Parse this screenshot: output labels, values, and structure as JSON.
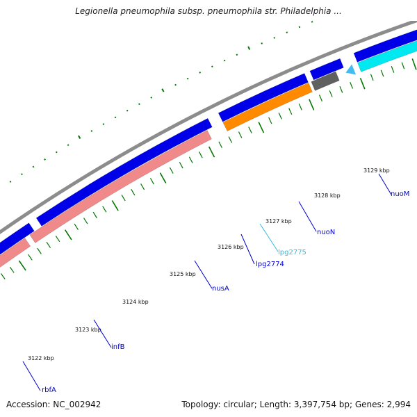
{
  "title": "Legionella pneumophila subsp. pneumophila str. Philadelphia ...",
  "footer": {
    "accession": "Accession: NC_002942",
    "topology": "Topology: circular; Length: 3,397,754 bp; Genes: 2,994"
  },
  "colors": {
    "backbone": "#8c8c8c",
    "cds_forward": "#0000e8",
    "rna_pink": "#f08a8a",
    "rrna_orange": "#ff8a00",
    "gray_gene": "#606060",
    "cyan_gene": "#00e8f0",
    "label_blue": "#0000cc",
    "label_cyan": "#33bbdd",
    "tick_green": "#007700"
  },
  "kbp_ticks": [
    "3122 kbp",
    "3123 kbp",
    "3124 kbp",
    "3125 kbp",
    "3126 kbp",
    "3127 kbp",
    "3128 kbp",
    "3129 kbp"
  ],
  "gene_labels": [
    "rbfA",
    "infB",
    "nusA",
    "lpg2774",
    "lpg2775",
    "nuoN",
    "nuoM"
  ]
}
